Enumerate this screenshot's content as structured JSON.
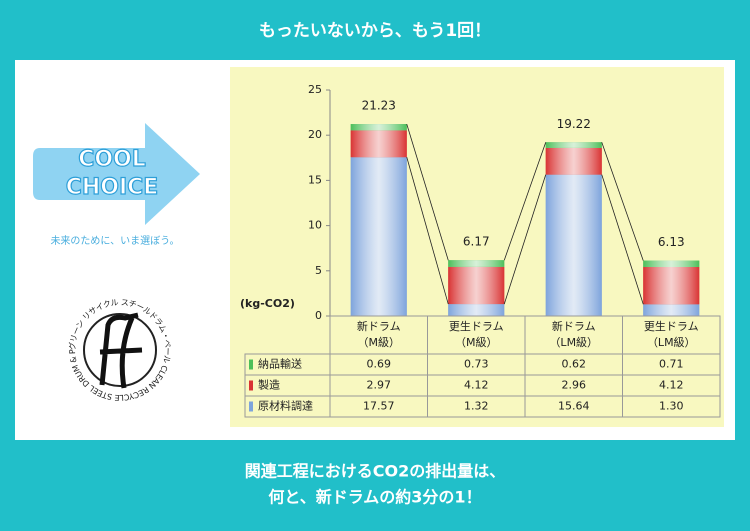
{
  "header": "もったいないから、もう1回！",
  "logo": {
    "cool": "COOL",
    "choice": "CHOICE",
    "tagline": "未来のために、いま選ぼう。",
    "seal_text": "グリーン リサイクル スチールドラム・ペール CLEAN RECYCLE STEEL DRUM & PAIL"
  },
  "chart_data": {
    "type": "bar",
    "stacked": true,
    "y_label": "(kg-CO2)",
    "categories": [
      [
        "新ドラム",
        "（M級）"
      ],
      [
        "更生ドラム",
        "（M級）"
      ],
      [
        "新ドラム",
        "（LM級）"
      ],
      [
        "更生ドラム",
        "（LM級）"
      ]
    ],
    "series": [
      {
        "name": "原材料調達",
        "color": "#7ea4dc",
        "values": [
          17.57,
          1.32,
          15.64,
          1.3
        ],
        "value_labels": [
          "17.57",
          "1.32",
          "15.64",
          "1.30"
        ]
      },
      {
        "name": "製造",
        "color": "#d93434",
        "values": [
          2.97,
          4.12,
          2.96,
          4.12
        ]
      },
      {
        "name": "納品輸送",
        "color": "#4cbf5a",
        "values": [
          0.69,
          0.73,
          0.62,
          0.71
        ]
      }
    ],
    "totals": [
      21.23,
      6.17,
      19.22,
      6.13
    ],
    "ylim": [
      0,
      25
    ],
    "yticks": [
      0,
      5,
      10,
      15,
      20,
      25
    ]
  },
  "footer": [
    "関連工程におけるCO2の排出量は、",
    "何と、新ドラムの約3分の1！"
  ]
}
